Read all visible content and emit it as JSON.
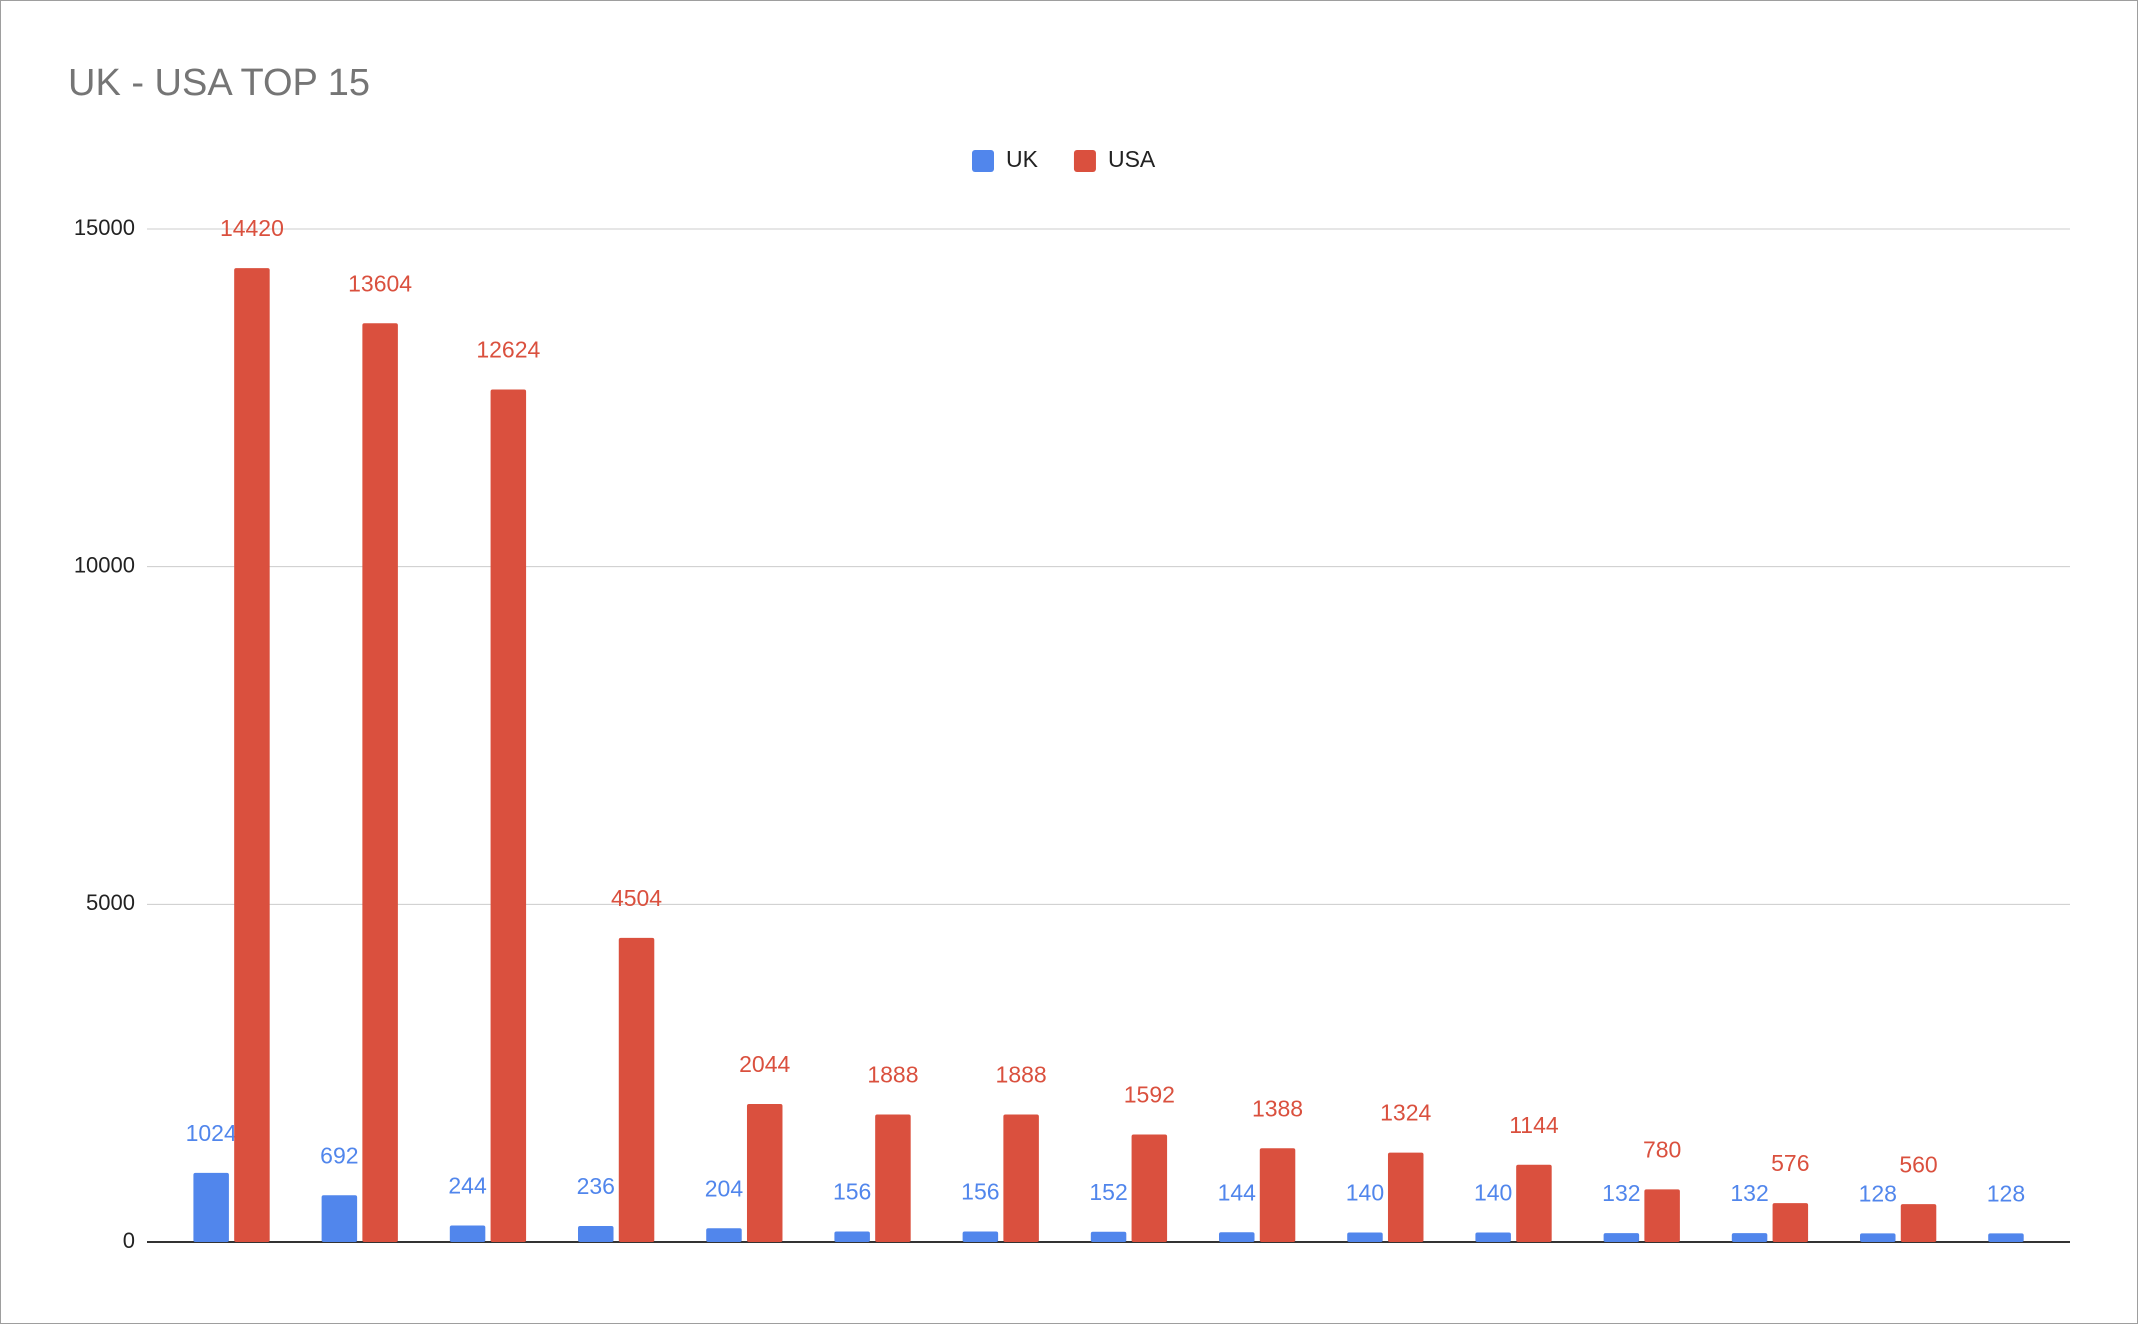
{
  "chart_data": {
    "type": "bar",
    "title": "UK - USA TOP 15",
    "categories": [
      null,
      null,
      null,
      null,
      null,
      null,
      null,
      null,
      null,
      null,
      null,
      null,
      null,
      null,
      null
    ],
    "series": [
      {
        "name": "UK",
        "color": "#5186ec",
        "values": [
          1024,
          692,
          244,
          236,
          204,
          156,
          156,
          152,
          144,
          140,
          140,
          132,
          132,
          128,
          128
        ]
      },
      {
        "name": "USA",
        "color": "#da503e",
        "values": [
          14420,
          13604,
          12624,
          4504,
          2044,
          1888,
          1888,
          1592,
          1388,
          1324,
          1144,
          780,
          576,
          560,
          null
        ]
      }
    ],
    "ylim": [
      0,
      15000
    ],
    "yticks": [
      0,
      5000,
      10000,
      15000
    ],
    "grid": true,
    "legend": "top"
  }
}
